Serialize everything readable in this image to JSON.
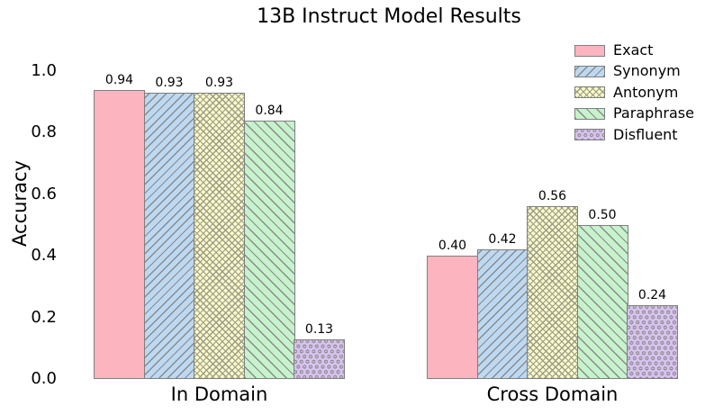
{
  "chart_data": {
    "type": "bar",
    "title": "13B Instruct Model Results",
    "xlabel": "",
    "ylabel": "Accuracy",
    "categories": [
      "In Domain",
      "Cross Domain"
    ],
    "series": [
      {
        "name": "Exact",
        "values": [
          0.94,
          0.4
        ],
        "color": "#fcb5be",
        "hatch": "none"
      },
      {
        "name": "Synonym",
        "values": [
          0.93,
          0.42
        ],
        "color": "#bdd9f2",
        "hatch": "forward-diagonal"
      },
      {
        "name": "Antonym",
        "values": [
          0.93,
          0.56
        ],
        "color": "#fafac7",
        "hatch": "cross-diagonal"
      },
      {
        "name": "Paraphrase",
        "values": [
          0.84,
          0.5
        ],
        "color": "#c6f2cc",
        "hatch": "back-diagonal"
      },
      {
        "name": "Disfluent",
        "values": [
          0.13,
          0.24
        ],
        "color": "#d8c3f0",
        "hatch": "dots"
      }
    ],
    "bar_value_labels": [
      [
        "0.94",
        "0.93",
        "0.93",
        "0.84",
        "0.13"
      ],
      [
        "0.40",
        "0.42",
        "0.56",
        "0.50",
        "0.24"
      ]
    ],
    "ylim": [
      0.0,
      1.0
    ],
    "yticks": [
      "0.0",
      "0.2",
      "0.4",
      "0.6",
      "0.8",
      "1.0"
    ],
    "grid": false,
    "legend_position": "upper right",
    "bar_edge_color": "#7f7f7f",
    "text_color": "#000000",
    "background_color": "#ffffff"
  }
}
